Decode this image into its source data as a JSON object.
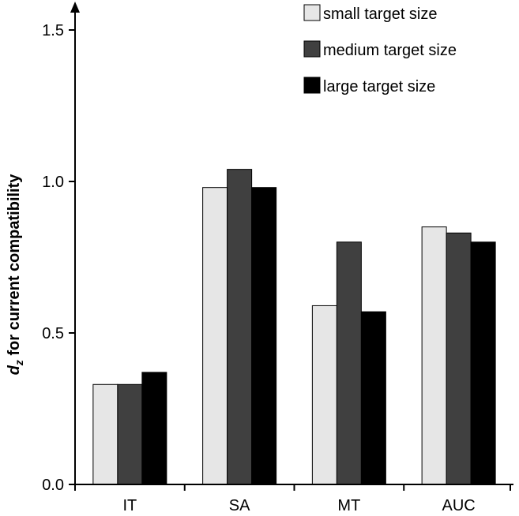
{
  "chart_data": {
    "type": "bar",
    "title": "",
    "xlabel": "",
    "ylabel": {
      "main": "d",
      "subscript": "z",
      "rest": " for current compatibility"
    },
    "categories": [
      "IT",
      "SA",
      "MT",
      "AUC"
    ],
    "ylim": [
      0,
      1.5
    ],
    "yticks": [
      0.0,
      0.5,
      1.0,
      1.5
    ],
    "ytick_labels": [
      "0.0",
      "0.5",
      "1.0",
      "1.5"
    ],
    "legend_position": "top-right",
    "series": [
      {
        "name": "small target size",
        "color": "#e6e6e6",
        "values": [
          0.33,
          0.98,
          0.59,
          0.85
        ]
      },
      {
        "name": "medium target size",
        "color": "#404040",
        "values": [
          0.33,
          1.04,
          0.8,
          0.83
        ]
      },
      {
        "name": "large target size",
        "color": "#000000",
        "values": [
          0.37,
          0.98,
          0.57,
          0.8
        ]
      }
    ]
  }
}
